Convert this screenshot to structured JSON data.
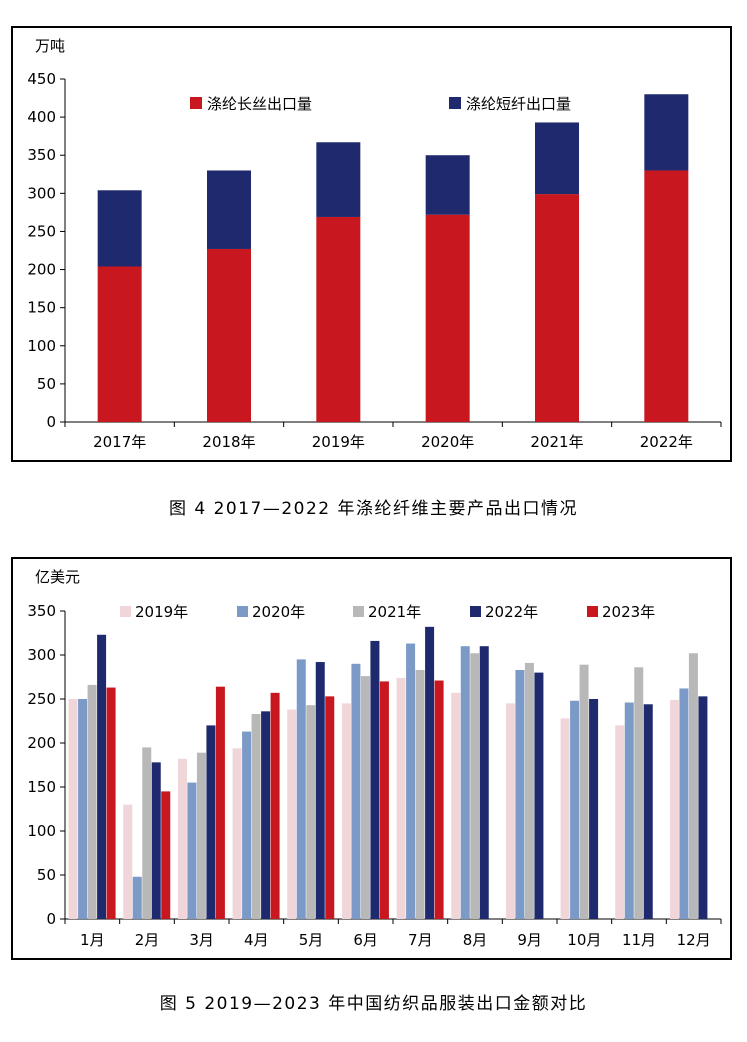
{
  "chart_data": [
    {
      "type": "bar",
      "stacked": true,
      "unit": "万吨",
      "caption": "图 4  2017—2022 年涤纶纤维主要产品出口情况",
      "categories": [
        "2017年",
        "2018年",
        "2019年",
        "2020年",
        "2021年",
        "2022年"
      ],
      "ylim": [
        0,
        450
      ],
      "yticks": [
        0,
        50,
        100,
        150,
        200,
        250,
        300,
        350,
        400,
        450
      ],
      "grid": false,
      "legend_position": "top",
      "series": [
        {
          "name": "涤纶长丝出口量",
          "color": "#c8171e",
          "values": [
            204,
            227,
            269,
            272,
            299,
            330
          ]
        },
        {
          "name": "涤纶短纤出口量",
          "color": "#1f2a6e",
          "values": [
            100,
            103,
            98,
            78,
            94,
            100
          ]
        }
      ]
    },
    {
      "type": "bar",
      "stacked": false,
      "unit": "亿美元",
      "caption": "图 5  2019—2023 年中国纺织品服装出口金额对比",
      "categories": [
        "1月",
        "2月",
        "3月",
        "4月",
        "5月",
        "6月",
        "7月",
        "8月",
        "9月",
        "10月",
        "11月",
        "12月"
      ],
      "ylim": [
        0,
        350
      ],
      "yticks": [
        0,
        50,
        100,
        150,
        200,
        250,
        300,
        350
      ],
      "grid": false,
      "legend_position": "top",
      "series": [
        {
          "name": "2019年",
          "color": "#f0d6d8",
          "values": [
            250,
            130,
            182,
            194,
            238,
            245,
            274,
            257,
            245,
            228,
            220,
            249
          ]
        },
        {
          "name": "2020年",
          "color": "#7b9ac8",
          "values": [
            250,
            48,
            155,
            213,
            295,
            290,
            313,
            310,
            283,
            248,
            246,
            262
          ]
        },
        {
          "name": "2021年",
          "color": "#b8b8b8",
          "values": [
            266,
            195,
            189,
            233,
            243,
            276,
            283,
            302,
            291,
            289,
            286,
            302
          ]
        },
        {
          "name": "2022年",
          "color": "#1f2a6e",
          "values": [
            323,
            178,
            220,
            236,
            292,
            316,
            332,
            310,
            280,
            250,
            244,
            253
          ]
        },
        {
          "name": "2023年",
          "color": "#c8171e",
          "values": [
            263,
            145,
            264,
            257,
            253,
            270,
            271,
            null,
            null,
            null,
            null,
            null
          ]
        }
      ]
    }
  ]
}
